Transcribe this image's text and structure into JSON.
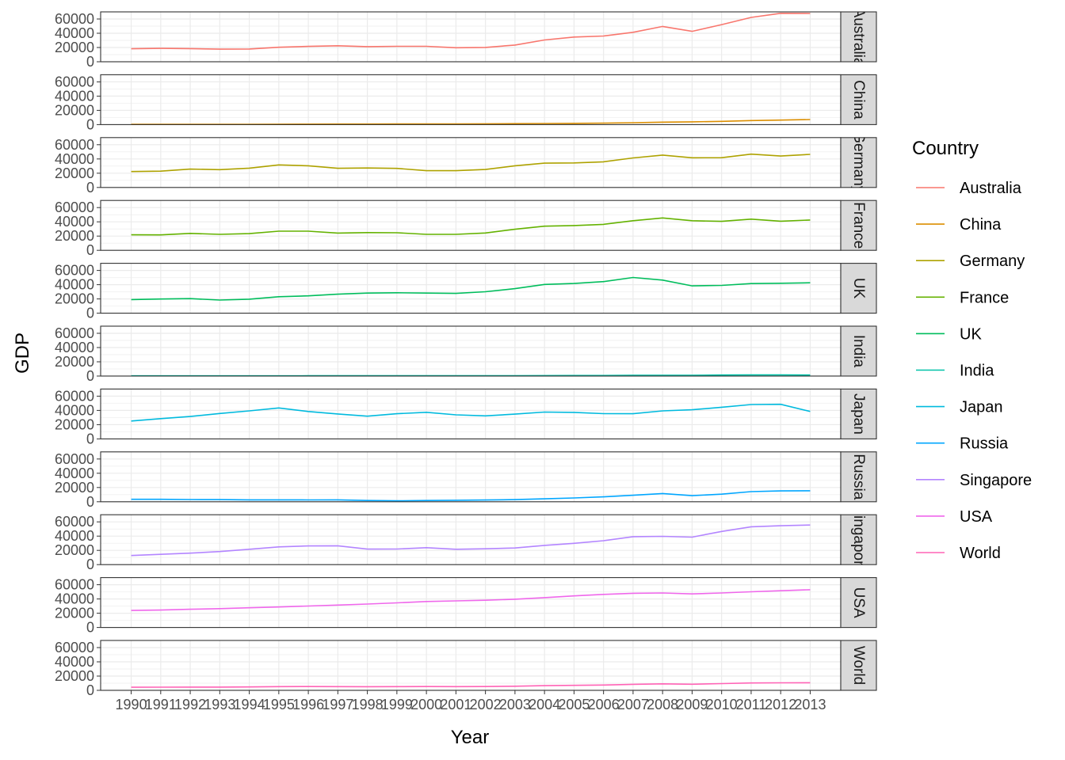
{
  "chart_data": {
    "type": "line",
    "facet": "rows",
    "xlabel": "Year",
    "ylabel": "GDP",
    "x": [
      1990,
      1991,
      1992,
      1993,
      1994,
      1995,
      1996,
      1997,
      1998,
      1999,
      2000,
      2001,
      2002,
      2003,
      2004,
      2005,
      2006,
      2007,
      2008,
      2009,
      2010,
      2011,
      2012,
      2013
    ],
    "xtick_labels": [
      "1990",
      "1991",
      "1992",
      "1993",
      "1994",
      "1995",
      "1996",
      "1997",
      "1998",
      "1999",
      "2000",
      "2001",
      "2002",
      "2003",
      "2004",
      "2005",
      "2006",
      "2007",
      "2008",
      "2009",
      "2010",
      "2011",
      "2012",
      "2013"
    ],
    "ylim": [
      0,
      70000
    ],
    "yticks": [
      0,
      20000,
      40000,
      60000
    ],
    "ytick_labels": [
      "0",
      "20000",
      "40000",
      "60000"
    ],
    "grid": true,
    "legend": {
      "title": "Country",
      "position": "right"
    },
    "series": [
      {
        "name": "Australia",
        "strip": "Australia",
        "color": "#F8766D",
        "values": [
          18200,
          18800,
          18500,
          17700,
          17900,
          20300,
          21500,
          22500,
          21200,
          21700,
          21700,
          19700,
          20100,
          23400,
          30600,
          34700,
          36100,
          41300,
          49600,
          42700,
          52100,
          62200,
          68000,
          67800
        ]
      },
      {
        "name": "China",
        "strip": "China",
        "color": "#DB8E00",
        "values": [
          318,
          333,
          366,
          377,
          473,
          610,
          709,
          781,
          828,
          873,
          959,
          1053,
          1148,
          1288,
          1508,
          1753,
          2099,
          2695,
          3471,
          3838,
          4560,
          5633,
          6337,
          7078
        ]
      },
      {
        "name": "Germany",
        "strip": "Germany",
        "color": "#AEA200",
        "values": [
          22300,
          22900,
          25800,
          25000,
          27100,
          31700,
          30500,
          26900,
          27300,
          26800,
          23600,
          23600,
          25200,
          30400,
          34100,
          34500,
          36000,
          41500,
          45400,
          41700,
          41800,
          46800,
          44100,
          46500
        ]
      },
      {
        "name": "France",
        "strip": "France",
        "color": "#64B200",
        "values": [
          21800,
          21700,
          23800,
          22400,
          23500,
          26900,
          26900,
          24200,
          24900,
          24700,
          22400,
          22500,
          24300,
          29600,
          33900,
          34800,
          36500,
          41600,
          45400,
          41600,
          40700,
          43800,
          40900,
          42600
        ]
      },
      {
        "name": "UK",
        "strip": "UK",
        "color": "#00BD5C",
        "values": [
          19100,
          19900,
          20500,
          18400,
          19700,
          23100,
          24300,
          26700,
          28200,
          28700,
          28200,
          27800,
          30100,
          34400,
          40300,
          41700,
          44300,
          50100,
          46500,
          38300,
          39000,
          41600,
          42000,
          42700
        ]
      },
      {
        "name": "India",
        "strip": "India",
        "color": "#00C1A7",
        "values": [
          368,
          303,
          317,
          301,
          346,
          374,
          400,
          415,
          413,
          442,
          457,
          466,
          484,
          565,
          651,
          740,
          830,
          1069,
          1042,
          1147,
          1418,
          1540,
          1504,
          1487
        ]
      },
      {
        "name": "Japan",
        "strip": "Japan",
        "color": "#00BADE",
        "values": [
          25100,
          28500,
          31500,
          35700,
          39300,
          43400,
          38400,
          35000,
          31900,
          35300,
          37300,
          33800,
          32300,
          34800,
          37700,
          37200,
          35400,
          35300,
          39300,
          40900,
          44500,
          48200,
          48600,
          38600
        ]
      },
      {
        "name": "Russia",
        "strip": "Russia",
        "color": "#00A6FF",
        "values": [
          3500,
          3500,
          3100,
          3000,
          2700,
          2700,
          2600,
          2700,
          1800,
          1300,
          1800,
          2100,
          2400,
          3000,
          4100,
          5300,
          6900,
          9100,
          11600,
          8600,
          10700,
          14200,
          15200,
          15500
        ]
      },
      {
        "name": "Singapore",
        "strip": "Singapore",
        "color": "#B385FF",
        "values": [
          12800,
          14500,
          16100,
          18300,
          21600,
          24900,
          26200,
          26400,
          21800,
          21900,
          23800,
          21600,
          22200,
          23300,
          27000,
          29900,
          33600,
          39200,
          39700,
          38600,
          46600,
          53100,
          54600,
          55600
        ]
      },
      {
        "name": "USA",
        "strip": "USA",
        "color": "#EF67EB",
        "values": [
          23900,
          24400,
          25500,
          26400,
          27700,
          28800,
          30100,
          31500,
          32900,
          34600,
          36500,
          37300,
          38200,
          39700,
          41900,
          44300,
          46400,
          48000,
          48500,
          47100,
          48500,
          50100,
          51600,
          53000
        ]
      },
      {
        "name": "World",
        "strip": "World",
        "color": "#FF63B6",
        "values": [
          4300,
          4400,
          4600,
          4600,
          4800,
          5200,
          5300,
          5200,
          5100,
          5200,
          5300,
          5200,
          5300,
          5800,
          6500,
          7000,
          7500,
          8400,
          9100,
          8600,
          9400,
          10300,
          10500,
          10700
        ]
      }
    ]
  }
}
